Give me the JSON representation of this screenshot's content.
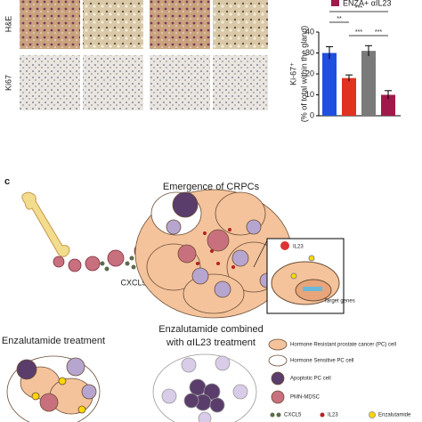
{
  "histology": {
    "row_labels": [
      "H&E",
      "Ki67"
    ]
  },
  "chart_data": {
    "type": "bar",
    "legend": [
      {
        "name": "ENZA+ αIL23",
        "color": "#a0194a"
      }
    ],
    "ylabel": [
      "Ki-67⁺",
      "(% of total within the gland)"
    ],
    "categories": [
      null,
      null,
      null,
      null
    ],
    "values": [
      30,
      18,
      31,
      10
    ],
    "errors": [
      3,
      1.5,
      2.5,
      2
    ],
    "colors": [
      "#1f4fe0",
      "#e0331f",
      "#7a7a7a",
      "#a0194a"
    ],
    "ylim": [
      0,
      40
    ],
    "yticks": [
      0,
      10,
      20,
      30,
      40
    ],
    "significance": [
      "***",
      "**",
      "***",
      "***"
    ]
  },
  "diagram": {
    "panel_label": "c",
    "top_title": "Emergence of CRPCs",
    "cxcl5_label": "CXCL5",
    "il23_label": "IL23",
    "target_label": "Target genes",
    "left_title": "Enzalutamide treatment",
    "middle_title": [
      "Enzalutamide combined",
      "with αIL23 treatment"
    ],
    "legend": [
      "Hormone Resistant prostate cancer (PC) cell",
      "Hormone Sensitive PC cell",
      "Apoptotic PC cell",
      "PMN-MDSC",
      "CXCL5",
      "IL23",
      "Enzalutamide"
    ]
  }
}
